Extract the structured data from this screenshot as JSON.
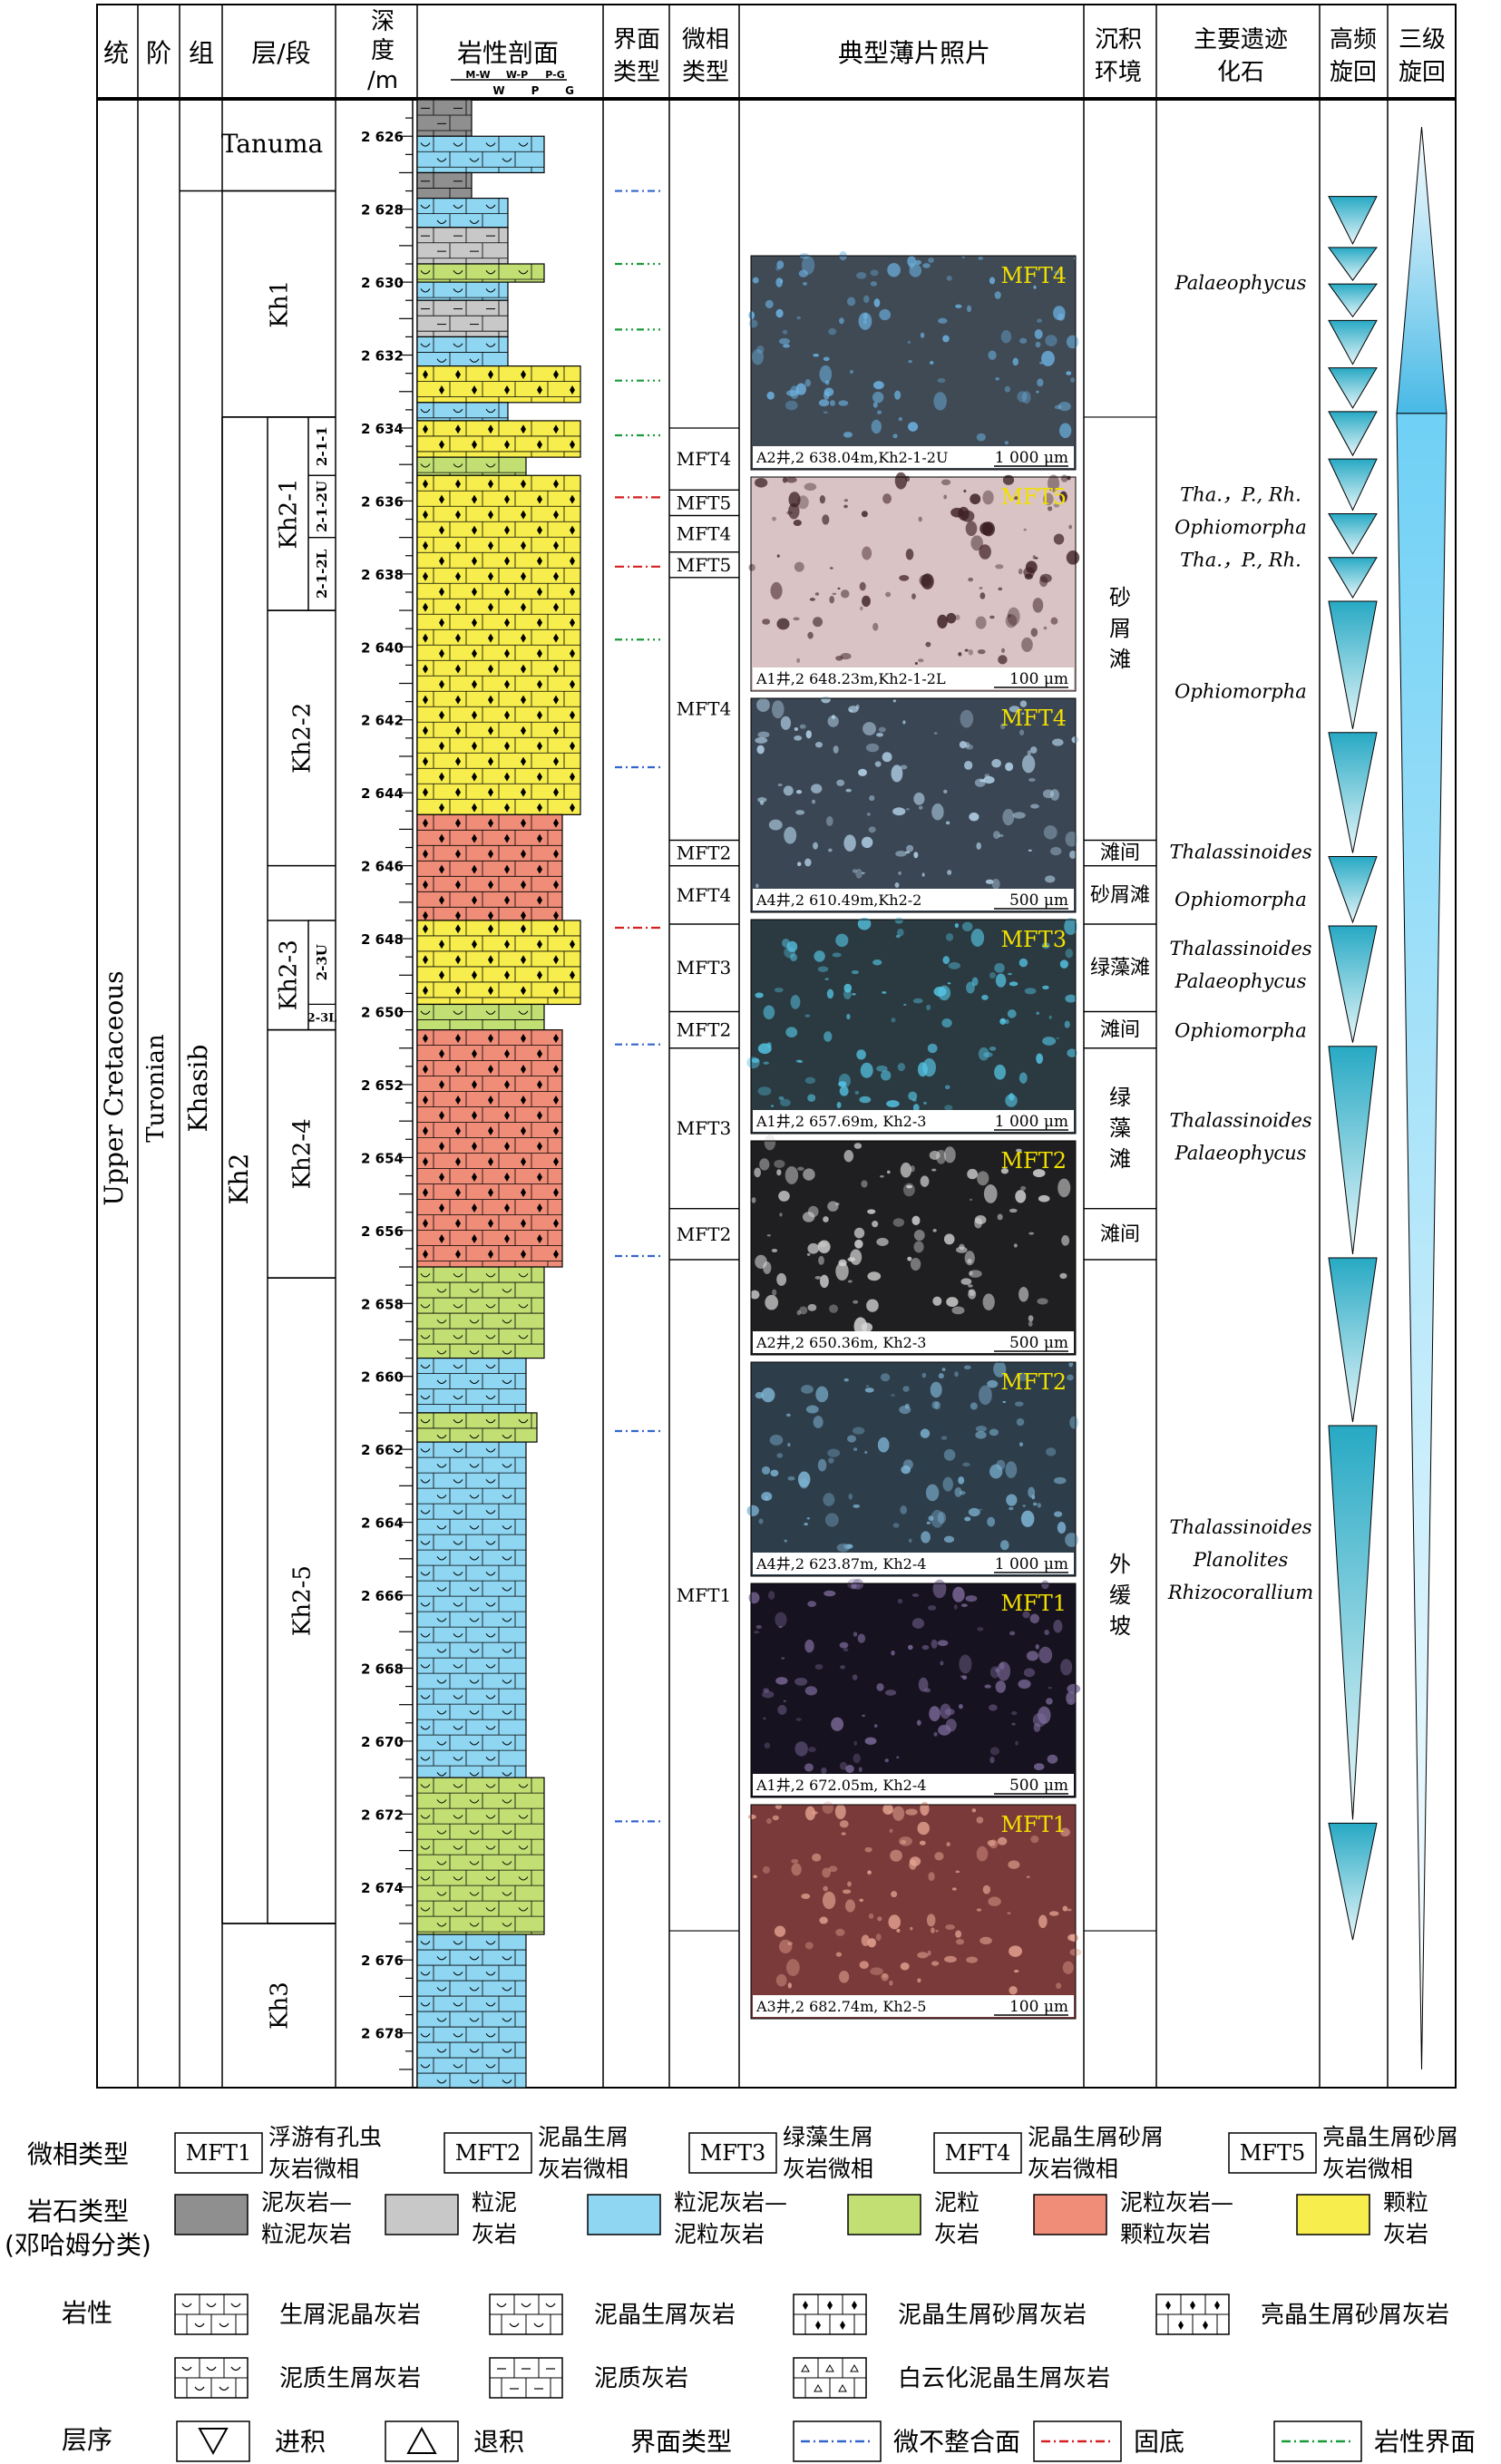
{
  "headers": {
    "tong": "统",
    "jie": "阶",
    "zu": "组",
    "ceng": "层/段",
    "shendu": [
      "深",
      "度",
      "/m"
    ],
    "yanxing": "岩性剖面",
    "texture_ticks": [
      "M-W",
      "W-P",
      "P-G"
    ],
    "texture_ticks2": [
      "W",
      "P",
      "G"
    ],
    "jiemian": [
      "界面",
      "类型"
    ],
    "weixiang": [
      "微相",
      "类型"
    ],
    "bopian": "典型薄片照片",
    "chenji": [
      "沉积",
      "环境"
    ],
    "yiji": [
      "主要遗迹",
      "化石"
    ],
    "gaopin": [
      "高频",
      "旋回"
    ],
    "sanji": [
      "三级",
      "旋回"
    ]
  },
  "strat": {
    "system": "Upper Cretaceous",
    "stage": "Turonian",
    "formation_top": "Tanuma",
    "formation_main": "Khasib",
    "member_kh2": "Kh2",
    "units": [
      {
        "label": "Kh1",
        "top": 2627.5,
        "bottom": 2633.7
      },
      {
        "label": "Kh2-1",
        "top": 2633.7,
        "bottom": 2639.0
      },
      {
        "label": "Kh2-2",
        "top": 2639.0,
        "bottom": 2646.0
      },
      {
        "label": "Kh2-3",
        "top": 2647.5,
        "bottom": 2650.5
      },
      {
        "label": "Kh2-4",
        "top": 2650.5,
        "bottom": 2657.3
      },
      {
        "label": "Kh2-5",
        "top": 2657.3,
        "bottom": 2675.0
      },
      {
        "label": "Kh3",
        "top": 2675.0,
        "bottom": 2679.5
      }
    ],
    "subunits": [
      {
        "label": "2-1-1",
        "top": 2633.7,
        "bottom": 2635.3
      },
      {
        "label": "2-1-2U",
        "top": 2635.3,
        "bottom": 2637.0
      },
      {
        "label": "2-1-2L",
        "top": 2637.0,
        "bottom": 2639.0
      },
      {
        "label": "2-3U",
        "top": 2647.5,
        "bottom": 2649.8
      },
      {
        "label": "2-3L",
        "top": 2649.8,
        "bottom": 2650.5
      }
    ]
  },
  "depth": {
    "min": 2625,
    "max": 2679.5,
    "labels": [
      "2 626",
      "2 628",
      "2 630",
      "2 632",
      "2 634",
      "2 636",
      "2 638",
      "2 640",
      "2 642",
      "2 644",
      "2 646",
      "2 648",
      "2 650",
      "2 652",
      "2 654",
      "2 656",
      "2 658",
      "2 660",
      "2 662",
      "2 664",
      "2 666",
      "2 668",
      "2 670",
      "2 672",
      "2 674",
      "2 676",
      "2 678"
    ],
    "label_values": [
      2626,
      2628,
      2630,
      2632,
      2634,
      2636,
      2638,
      2640,
      2642,
      2644,
      2646,
      2648,
      2650,
      2652,
      2654,
      2656,
      2658,
      2660,
      2662,
      2664,
      2666,
      2668,
      2670,
      2672,
      2674,
      2676,
      2678
    ]
  },
  "lith_layers": [
    {
      "top": 2625.0,
      "bottom": 2626.0,
      "rock": "mudstone_wackestone",
      "texture": 1
    },
    {
      "top": 2626.0,
      "bottom": 2627.0,
      "rock": "wackestone_packstone",
      "texture": 3
    },
    {
      "top": 2627.0,
      "bottom": 2627.7,
      "rock": "mudstone_wackestone",
      "texture": 1
    },
    {
      "top": 2627.7,
      "bottom": 2628.5,
      "rock": "wackestone_packstone",
      "texture": 2
    },
    {
      "top": 2628.5,
      "bottom": 2629.5,
      "rock": "wackestone",
      "texture": 2
    },
    {
      "top": 2629.5,
      "bottom": 2630.0,
      "rock": "packstone",
      "texture": 3
    },
    {
      "top": 2630.0,
      "bottom": 2630.5,
      "rock": "wackestone_packstone",
      "texture": 2
    },
    {
      "top": 2630.5,
      "bottom": 2631.5,
      "rock": "wackestone",
      "texture": 2
    },
    {
      "top": 2631.5,
      "bottom": 2632.3,
      "rock": "wackestone_packstone",
      "texture": 2
    },
    {
      "top": 2632.3,
      "bottom": 2633.3,
      "rock": "grainstone",
      "texture": 4
    },
    {
      "top": 2633.3,
      "bottom": 2633.8,
      "rock": "wackestone_packstone",
      "texture": 2
    },
    {
      "top": 2633.8,
      "bottom": 2634.8,
      "rock": "grainstone",
      "texture": 4
    },
    {
      "top": 2634.8,
      "bottom": 2635.3,
      "rock": "packstone",
      "texture": 2.5
    },
    {
      "top": 2635.3,
      "bottom": 2644.6,
      "rock": "grainstone",
      "texture": 4
    },
    {
      "top": 2644.6,
      "bottom": 2647.5,
      "rock": "packstone_grainstone",
      "texture": 3.5
    },
    {
      "top": 2647.5,
      "bottom": 2649.8,
      "rock": "grainstone",
      "texture": 4
    },
    {
      "top": 2649.8,
      "bottom": 2650.5,
      "rock": "packstone",
      "texture": 3
    },
    {
      "top": 2650.5,
      "bottom": 2657.0,
      "rock": "packstone_grainstone",
      "texture": 3.5
    },
    {
      "top": 2657.0,
      "bottom": 2659.5,
      "rock": "packstone",
      "texture": 3
    },
    {
      "top": 2659.5,
      "bottom": 2661.0,
      "rock": "wackestone_packstone",
      "texture": 2.5
    },
    {
      "top": 2661.0,
      "bottom": 2661.8,
      "rock": "packstone",
      "texture": 2.8
    },
    {
      "top": 2661.8,
      "bottom": 2671.0,
      "rock": "wackestone_packstone",
      "texture": 2.5
    },
    {
      "top": 2671.0,
      "bottom": 2675.3,
      "rock": "packstone",
      "texture": 3
    },
    {
      "top": 2675.3,
      "bottom": 2679.5,
      "rock": "wackestone_packstone",
      "texture": 2.5
    }
  ],
  "rock_colors": {
    "mudstone_wackestone": "#8f8f8f",
    "wackestone": "#c8c8c8",
    "wackestone_packstone": "#8fd6f2",
    "packstone": "#c2df74",
    "packstone_grainstone": "#ef8d79",
    "grainstone": "#f7ee4e"
  },
  "boundaries": [
    {
      "depth": 2627.5,
      "type": "micro_unconformity"
    },
    {
      "depth": 2629.5,
      "type": "lithologic"
    },
    {
      "depth": 2631.3,
      "type": "lithologic"
    },
    {
      "depth": 2632.7,
      "type": "lithologic"
    },
    {
      "depth": 2634.2,
      "type": "lithologic"
    },
    {
      "depth": 2635.9,
      "type": "hardground"
    },
    {
      "depth": 2637.8,
      "type": "hardground"
    },
    {
      "depth": 2639.8,
      "type": "lithologic"
    },
    {
      "depth": 2643.3,
      "type": "micro_unconformity"
    },
    {
      "depth": 2647.7,
      "type": "hardground"
    },
    {
      "depth": 2650.9,
      "type": "micro_unconformity"
    },
    {
      "depth": 2656.7,
      "type": "micro_unconformity"
    },
    {
      "depth": 2661.5,
      "type": "micro_unconformity"
    },
    {
      "depth": 2672.2,
      "type": "micro_unconformity"
    }
  ],
  "boundary_colors": {
    "micro_unconformity": "#3366cc",
    "hardground": "#d42020",
    "lithologic": "#1a9a3a"
  },
  "microfacies": [
    {
      "label": "MFT4",
      "top": 2634.0,
      "bottom": 2635.7
    },
    {
      "label": "MFT5",
      "top": 2635.7,
      "bottom": 2636.4
    },
    {
      "label": "MFT4",
      "top": 2636.4,
      "bottom": 2637.4
    },
    {
      "label": "MFT5",
      "top": 2637.4,
      "bottom": 2638.1
    },
    {
      "label": "MFT4",
      "top": 2638.1,
      "bottom": 2645.3
    },
    {
      "label": "MFT2",
      "top": 2645.3,
      "bottom": 2646.0
    },
    {
      "label": "MFT4",
      "top": 2646.0,
      "bottom": 2647.6
    },
    {
      "label": "MFT3",
      "top": 2647.6,
      "bottom": 2650.0
    },
    {
      "label": "MFT2",
      "top": 2650.0,
      "bottom": 2651.0
    },
    {
      "label": "MFT3",
      "top": 2651.0,
      "bottom": 2655.4
    },
    {
      "label": "MFT2",
      "top": 2655.4,
      "bottom": 2656.8
    },
    {
      "label": "MFT1",
      "top": 2656.8,
      "bottom": 2675.2
    }
  ],
  "photos": [
    {
      "tag": "MFT4",
      "caption": "A2井,2 638.04m,Kh2-1-2U",
      "scale": "1 000 μm",
      "base": "#3f4a55",
      "speck": "#6fb7e8"
    },
    {
      "tag": "MFT5",
      "caption": "A1井,2 648.23m,Kh2-1-2L",
      "scale": "100 μm",
      "base": "#d9c3c4",
      "speck": "#3a1d20"
    },
    {
      "tag": "MFT4",
      "caption": "A4井,2 610.49m,Kh2-2",
      "scale": "500 μm",
      "base": "#3b4654",
      "speck": "#b8d8ee"
    },
    {
      "tag": "MFT3",
      "caption": "A1井,2 657.69m, Kh2-3",
      "scale": "1 000 μm",
      "base": "#2a3a40",
      "speck": "#56c6e6"
    },
    {
      "tag": "MFT2",
      "caption": "A2井,2 650.36m, Kh2-3",
      "scale": "500 μm",
      "base": "#1f1f22",
      "speck": "#d8d8d8"
    },
    {
      "tag": "MFT2",
      "caption": "A4井,2 623.87m, Kh2-4",
      "scale": "1 000 μm",
      "base": "#2e3d4a",
      "speck": "#7fb6d6"
    },
    {
      "tag": "MFT1",
      "caption": "A1井,2 672.05m, Kh2-4",
      "scale": "500 μm",
      "base": "#17121f",
      "speck": "#7c6a9a"
    },
    {
      "tag": "MFT1",
      "caption": "A3井,2 682.74m, Kh2-5",
      "scale": "100 μm",
      "base": "#7a3a3a",
      "speck": "#e6a592"
    }
  ],
  "environments": [
    {
      "label": [
        "砂",
        "屑",
        "滩"
      ],
      "top": 2633.7,
      "bottom": 2645.3
    },
    {
      "label": [
        "滩间"
      ],
      "top": 2645.3,
      "bottom": 2646.0
    },
    {
      "label": [
        "砂屑滩"
      ],
      "top": 2646.0,
      "bottom": 2647.6
    },
    {
      "label": [
        "绿藻滩"
      ],
      "top": 2647.6,
      "bottom": 2650.0
    },
    {
      "label": [
        "滩间"
      ],
      "top": 2650.0,
      "bottom": 2651.0
    },
    {
      "label": [
        "绿",
        "藻",
        "滩"
      ],
      "top": 2651.0,
      "bottom": 2655.4
    },
    {
      "label": [
        "滩间"
      ],
      "top": 2655.4,
      "bottom": 2656.8
    },
    {
      "label": [
        "外",
        "缓",
        "坡"
      ],
      "top": 2656.8,
      "bottom": 2675.2
    }
  ],
  "fossils": [
    {
      "text": [
        "Palaeophycus"
      ],
      "depth": 2630.0
    },
    {
      "text": [
        "Tha.，P., Rh.",
        "Ophiomorpha",
        "Tha.，P., Rh."
      ],
      "depth": 2636.7
    },
    {
      "text": [
        "Ophiomorpha"
      ],
      "depth": 2641.2
    },
    {
      "text": [
        "Thalassinoides"
      ],
      "depth": 2645.6
    },
    {
      "text": [
        "Ophiomorpha"
      ],
      "depth": 2646.9
    },
    {
      "text": [
        "Thalassinoides",
        "Palaeophycus"
      ],
      "depth": 2648.7
    },
    {
      "text": [
        "Ophiomorpha"
      ],
      "depth": 2650.5
    },
    {
      "text": [
        "Thalassinoides",
        "Palaeophycus"
      ],
      "depth": 2653.4
    },
    {
      "text": [
        "Thalassinoides",
        "Planolites",
        "Rhizocorallium"
      ],
      "depth": 2665.0
    }
  ],
  "hf_cycles": [
    [
      2627.6,
      2629.0
    ],
    [
      2629.0,
      2630.0
    ],
    [
      2630.0,
      2631.0
    ],
    [
      2631.0,
      2632.3
    ],
    [
      2632.3,
      2633.5
    ],
    [
      2633.5,
      2634.8
    ],
    [
      2634.8,
      2636.3
    ],
    [
      2636.3,
      2637.5
    ],
    [
      2637.5,
      2638.7
    ],
    [
      2638.7,
      2642.3
    ],
    [
      2642.3,
      2645.7
    ],
    [
      2645.7,
      2647.6
    ],
    [
      2647.6,
      2650.9
    ],
    [
      2650.9,
      2656.7
    ],
    [
      2656.7,
      2661.3
    ],
    [
      2661.3,
      2672.2
    ],
    [
      2672.2,
      2675.5
    ]
  ],
  "third_order": {
    "top": 2625.0,
    "turn": 2633.6,
    "bottom": 2679.0
  },
  "legend": {
    "row1_title": "微相类型",
    "mft": [
      {
        "code": "MFT1",
        "desc": [
          "浮游有孔虫",
          "灰岩微相"
        ]
      },
      {
        "code": "MFT2",
        "desc": [
          "泥晶生屑",
          "灰岩微相"
        ]
      },
      {
        "code": "MFT3",
        "desc": [
          "绿藻生屑",
          "灰岩微相"
        ]
      },
      {
        "code": "MFT4",
        "desc": [
          "泥晶生屑砂屑",
          "灰岩微相"
        ]
      },
      {
        "code": "MFT5",
        "desc": [
          "亮晶生屑砂屑",
          "灰岩微相"
        ]
      }
    ],
    "row2_title": [
      "岩石类型",
      "(邓哈姆分类)"
    ],
    "rocks": [
      {
        "key": "mudstone_wackestone",
        "desc": [
          "泥灰岩—",
          "粒泥灰岩"
        ]
      },
      {
        "key": "wackestone",
        "desc": [
          "粒泥",
          "灰岩"
        ]
      },
      {
        "key": "wackestone_packstone",
        "desc": [
          "粒泥灰岩—",
          "泥粒灰岩"
        ]
      },
      {
        "key": "packstone",
        "desc": [
          "泥粒",
          "灰岩"
        ]
      },
      {
        "key": "packstone_grainstone",
        "desc": [
          "泥粒灰岩—",
          "颗粒灰岩"
        ]
      },
      {
        "key": "grainstone",
        "desc": [
          "颗粒",
          "灰岩"
        ]
      }
    ],
    "row3_title": "岩性",
    "lith_types": [
      "生屑泥晶灰岩",
      "泥晶生屑灰岩",
      "泥晶生屑砂屑灰岩",
      "亮晶生屑砂屑灰岩",
      "泥质生屑灰岩",
      "泥质灰岩",
      "白云化泥晶生屑灰岩"
    ],
    "row4_title": "层序",
    "seq": [
      "进积",
      "退积"
    ],
    "boundary_title": "界面类型",
    "boundary_types": [
      "微不整合面",
      "固底",
      "岩性界面"
    ]
  }
}
